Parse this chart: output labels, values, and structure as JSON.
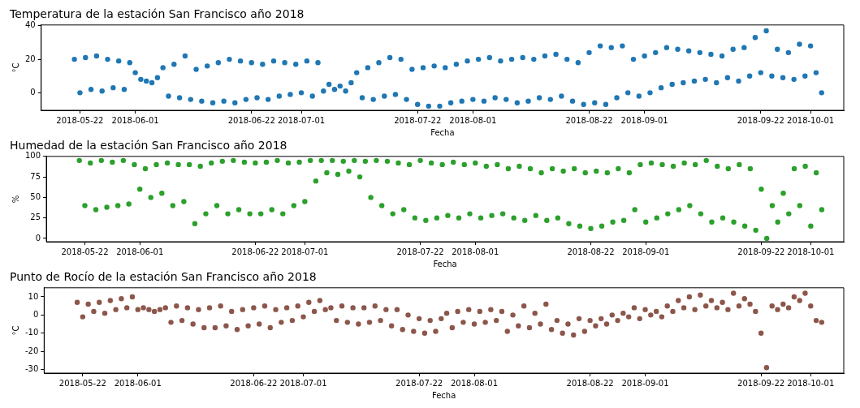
{
  "chart_data": [
    {
      "type": "scatter",
      "title": "Temperatura de la estación San Francisco año 2018",
      "xlabel": "Fecha",
      "ylabel": "°C",
      "color": "#1f77b4",
      "marker": "circle",
      "grid": false,
      "legend": false,
      "x": [
        "2018-05-21",
        "2018-05-22",
        "2018-05-23",
        "2018-05-24",
        "2018-05-25",
        "2018-05-26",
        "2018-05-27",
        "2018-05-28",
        "2018-05-29",
        "2018-05-30",
        "2018-05-31",
        "2018-06-01",
        "2018-06-02",
        "2018-06-03",
        "2018-06-04",
        "2018-06-05",
        "2018-06-06",
        "2018-06-07",
        "2018-06-08",
        "2018-06-09",
        "2018-06-10",
        "2018-06-11",
        "2018-06-12",
        "2018-06-13",
        "2018-06-14",
        "2018-06-15",
        "2018-06-16",
        "2018-06-17",
        "2018-06-18",
        "2018-06-19",
        "2018-06-20",
        "2018-06-21",
        "2018-06-22",
        "2018-06-23",
        "2018-06-24",
        "2018-06-25",
        "2018-06-26",
        "2018-06-27",
        "2018-06-28",
        "2018-06-29",
        "2018-06-30",
        "2018-07-01",
        "2018-07-02",
        "2018-07-03",
        "2018-07-04",
        "2018-07-05",
        "2018-07-06",
        "2018-07-07",
        "2018-07-08",
        "2018-07-09",
        "2018-07-10",
        "2018-07-11",
        "2018-07-12",
        "2018-07-13",
        "2018-07-14",
        "2018-07-15",
        "2018-07-16",
        "2018-07-17",
        "2018-07-18",
        "2018-07-19",
        "2018-07-20",
        "2018-07-21",
        "2018-07-22",
        "2018-07-23",
        "2018-07-24",
        "2018-07-25",
        "2018-07-26",
        "2018-07-27",
        "2018-07-28",
        "2018-07-29",
        "2018-07-30",
        "2018-07-31",
        "2018-08-01",
        "2018-08-02",
        "2018-08-03",
        "2018-08-04",
        "2018-08-05",
        "2018-08-06",
        "2018-08-07",
        "2018-08-08",
        "2018-08-09",
        "2018-08-10",
        "2018-08-11",
        "2018-08-12",
        "2018-08-13",
        "2018-08-14",
        "2018-08-15",
        "2018-08-16",
        "2018-08-17",
        "2018-08-18",
        "2018-08-19",
        "2018-08-20",
        "2018-08-21",
        "2018-08-22",
        "2018-08-23",
        "2018-08-24",
        "2018-08-25",
        "2018-08-26",
        "2018-08-27",
        "2018-08-28",
        "2018-08-29",
        "2018-08-30",
        "2018-08-31",
        "2018-09-01",
        "2018-09-02",
        "2018-09-03",
        "2018-09-04",
        "2018-09-05",
        "2018-09-06",
        "2018-09-07",
        "2018-09-08",
        "2018-09-09",
        "2018-09-10",
        "2018-09-11",
        "2018-09-12",
        "2018-09-13",
        "2018-09-14",
        "2018-09-15",
        "2018-09-16",
        "2018-09-17",
        "2018-09-18",
        "2018-09-19",
        "2018-09-20",
        "2018-09-21",
        "2018-09-22",
        "2018-09-23",
        "2018-09-24",
        "2018-09-25",
        "2018-09-26",
        "2018-09-27",
        "2018-09-28",
        "2018-09-29",
        "2018-09-30",
        "2018-10-01",
        "2018-10-02",
        "2018-10-03"
      ],
      "values": [
        20,
        0,
        21,
        2,
        22,
        1,
        20,
        3,
        19,
        2,
        18,
        12,
        8,
        7,
        6,
        9,
        15,
        -2,
        17,
        -3,
        22,
        -4,
        14,
        -5,
        16,
        -6,
        18,
        -5,
        20,
        -6,
        19,
        -4,
        18,
        -3,
        17,
        -4,
        19,
        -2,
        18,
        -1,
        17,
        0,
        19,
        -2,
        18,
        1,
        5,
        2,
        4,
        1,
        6,
        12,
        -3,
        15,
        -4,
        18,
        -2,
        21,
        -1,
        20,
        -4,
        14,
        -7,
        15,
        -8,
        16,
        -8,
        15,
        -6,
        17,
        -5,
        19,
        -4,
        20,
        -5,
        21,
        -3,
        19,
        -4,
        20,
        -6,
        21,
        -5,
        20,
        -3,
        22,
        -4,
        23,
        -2,
        20,
        -5,
        18,
        -7,
        24,
        -6,
        28,
        -7,
        27,
        -3,
        28,
        0,
        20,
        -2,
        22,
        0,
        24,
        3,
        27,
        5,
        26,
        6,
        25,
        7,
        24,
        8,
        23,
        6,
        22,
        9,
        26,
        7,
        27,
        10,
        33,
        12,
        37,
        10,
        26,
        9,
        24,
        8,
        29,
        10,
        28,
        12,
        0
      ],
      "xlim": [
        "2018-05-15",
        "2018-10-07"
      ],
      "xticks": [
        "2018-05-22",
        "2018-06-01",
        "2018-06-22",
        "2018-07-01",
        "2018-07-22",
        "2018-08-01",
        "2018-08-22",
        "2018-09-01",
        "2018-09-22",
        "2018-10-01"
      ],
      "ylim": [
        -10.5,
        40.5
      ],
      "yticks": [
        0,
        20,
        40
      ]
    },
    {
      "type": "scatter",
      "title": "Humedad de la estación San Francisco año 2018",
      "xlabel": "Fecha",
      "ylabel": "%",
      "color": "#2ca02c",
      "marker": "circle",
      "grid": false,
      "legend": false,
      "x": [
        "2018-05-21",
        "2018-05-22",
        "2018-05-23",
        "2018-05-24",
        "2018-05-25",
        "2018-05-26",
        "2018-05-27",
        "2018-05-28",
        "2018-05-29",
        "2018-05-30",
        "2018-05-31",
        "2018-06-01",
        "2018-06-02",
        "2018-06-03",
        "2018-06-04",
        "2018-06-05",
        "2018-06-06",
        "2018-06-07",
        "2018-06-08",
        "2018-06-09",
        "2018-06-10",
        "2018-06-11",
        "2018-06-12",
        "2018-06-13",
        "2018-06-14",
        "2018-06-15",
        "2018-06-16",
        "2018-06-17",
        "2018-06-18",
        "2018-06-19",
        "2018-06-20",
        "2018-06-21",
        "2018-06-22",
        "2018-06-23",
        "2018-06-24",
        "2018-06-25",
        "2018-06-26",
        "2018-06-27",
        "2018-06-28",
        "2018-06-29",
        "2018-06-30",
        "2018-07-01",
        "2018-07-02",
        "2018-07-03",
        "2018-07-04",
        "2018-07-05",
        "2018-07-06",
        "2018-07-07",
        "2018-07-08",
        "2018-07-09",
        "2018-07-10",
        "2018-07-11",
        "2018-07-12",
        "2018-07-13",
        "2018-07-14",
        "2018-07-15",
        "2018-07-16",
        "2018-07-17",
        "2018-07-18",
        "2018-07-19",
        "2018-07-20",
        "2018-07-21",
        "2018-07-22",
        "2018-07-23",
        "2018-07-24",
        "2018-07-25",
        "2018-07-26",
        "2018-07-27",
        "2018-07-28",
        "2018-07-29",
        "2018-07-30",
        "2018-07-31",
        "2018-08-01",
        "2018-08-02",
        "2018-08-03",
        "2018-08-04",
        "2018-08-05",
        "2018-08-06",
        "2018-08-07",
        "2018-08-08",
        "2018-08-09",
        "2018-08-10",
        "2018-08-11",
        "2018-08-12",
        "2018-08-13",
        "2018-08-14",
        "2018-08-15",
        "2018-08-16",
        "2018-08-17",
        "2018-08-18",
        "2018-08-19",
        "2018-08-20",
        "2018-08-21",
        "2018-08-22",
        "2018-08-23",
        "2018-08-24",
        "2018-08-25",
        "2018-08-26",
        "2018-08-27",
        "2018-08-28",
        "2018-08-29",
        "2018-08-30",
        "2018-08-31",
        "2018-09-01",
        "2018-09-02",
        "2018-09-03",
        "2018-09-04",
        "2018-09-05",
        "2018-09-06",
        "2018-09-07",
        "2018-09-08",
        "2018-09-09",
        "2018-09-10",
        "2018-09-11",
        "2018-09-12",
        "2018-09-13",
        "2018-09-14",
        "2018-09-15",
        "2018-09-16",
        "2018-09-17",
        "2018-09-18",
        "2018-09-19",
        "2018-09-20",
        "2018-09-21",
        "2018-09-22",
        "2018-09-23",
        "2018-09-24",
        "2018-09-25",
        "2018-09-26",
        "2018-09-27",
        "2018-09-28",
        "2018-09-29",
        "2018-09-30",
        "2018-10-01",
        "2018-10-02",
        "2018-10-03"
      ],
      "values": [
        95,
        40,
        92,
        35,
        95,
        38,
        93,
        40,
        95,
        42,
        90,
        60,
        85,
        50,
        90,
        55,
        92,
        40,
        90,
        45,
        90,
        18,
        88,
        30,
        92,
        40,
        94,
        30,
        95,
        35,
        93,
        30,
        92,
        30,
        93,
        35,
        95,
        30,
        92,
        40,
        93,
        45,
        95,
        70,
        95,
        80,
        95,
        78,
        94,
        82,
        95,
        75,
        94,
        50,
        95,
        40,
        94,
        30,
        92,
        35,
        90,
        25,
        95,
        22,
        92,
        25,
        90,
        28,
        93,
        25,
        90,
        30,
        92,
        25,
        88,
        28,
        90,
        30,
        85,
        25,
        88,
        22,
        85,
        28,
        80,
        22,
        85,
        25,
        82,
        18,
        85,
        15,
        80,
        12,
        82,
        15,
        80,
        20,
        85,
        22,
        80,
        35,
        90,
        20,
        92,
        25,
        90,
        30,
        88,
        35,
        92,
        40,
        90,
        30,
        95,
        20,
        88,
        25,
        85,
        20,
        90,
        15,
        85,
        10,
        60,
        0,
        40,
        20,
        55,
        30,
        85,
        40,
        88,
        15,
        80,
        35
      ],
      "xlim": [
        "2018-05-15",
        "2018-10-07"
      ],
      "xticks": [
        "2018-05-22",
        "2018-06-01",
        "2018-06-22",
        "2018-07-01",
        "2018-07-22",
        "2018-08-01",
        "2018-08-22",
        "2018-09-01",
        "2018-09-22",
        "2018-10-01"
      ],
      "ylim": [
        -4,
        100
      ],
      "yticks": [
        0,
        25,
        50,
        75,
        100
      ]
    },
    {
      "type": "scatter",
      "title": "Punto de Rocío de la estación San Francisco año 2018",
      "xlabel": "Fecha",
      "ylabel": "°C",
      "color": "#8c564b",
      "marker": "circle",
      "grid": false,
      "legend": false,
      "x": [
        "2018-05-21",
        "2018-05-22",
        "2018-05-23",
        "2018-05-24",
        "2018-05-25",
        "2018-05-26",
        "2018-05-27",
        "2018-05-28",
        "2018-05-29",
        "2018-05-30",
        "2018-05-31",
        "2018-06-01",
        "2018-06-02",
        "2018-06-03",
        "2018-06-04",
        "2018-06-05",
        "2018-06-06",
        "2018-06-07",
        "2018-06-08",
        "2018-06-09",
        "2018-06-10",
        "2018-06-11",
        "2018-06-12",
        "2018-06-13",
        "2018-06-14",
        "2018-06-15",
        "2018-06-16",
        "2018-06-17",
        "2018-06-18",
        "2018-06-19",
        "2018-06-20",
        "2018-06-21",
        "2018-06-22",
        "2018-06-23",
        "2018-06-24",
        "2018-06-25",
        "2018-06-26",
        "2018-06-27",
        "2018-06-28",
        "2018-06-29",
        "2018-06-30",
        "2018-07-01",
        "2018-07-02",
        "2018-07-03",
        "2018-07-04",
        "2018-07-05",
        "2018-07-06",
        "2018-07-07",
        "2018-07-08",
        "2018-07-09",
        "2018-07-10",
        "2018-07-11",
        "2018-07-12",
        "2018-07-13",
        "2018-07-14",
        "2018-07-15",
        "2018-07-16",
        "2018-07-17",
        "2018-07-18",
        "2018-07-19",
        "2018-07-20",
        "2018-07-21",
        "2018-07-22",
        "2018-07-23",
        "2018-07-24",
        "2018-07-25",
        "2018-07-26",
        "2018-07-27",
        "2018-07-28",
        "2018-07-29",
        "2018-07-30",
        "2018-07-31",
        "2018-08-01",
        "2018-08-02",
        "2018-08-03",
        "2018-08-04",
        "2018-08-05",
        "2018-08-06",
        "2018-08-07",
        "2018-08-08",
        "2018-08-09",
        "2018-08-10",
        "2018-08-11",
        "2018-08-12",
        "2018-08-13",
        "2018-08-14",
        "2018-08-15",
        "2018-08-16",
        "2018-08-17",
        "2018-08-18",
        "2018-08-19",
        "2018-08-20",
        "2018-08-21",
        "2018-08-22",
        "2018-08-23",
        "2018-08-24",
        "2018-08-25",
        "2018-08-26",
        "2018-08-27",
        "2018-08-28",
        "2018-08-29",
        "2018-08-30",
        "2018-08-31",
        "2018-09-01",
        "2018-09-02",
        "2018-09-03",
        "2018-09-04",
        "2018-09-05",
        "2018-09-06",
        "2018-09-07",
        "2018-09-08",
        "2018-09-09",
        "2018-09-10",
        "2018-09-11",
        "2018-09-12",
        "2018-09-13",
        "2018-09-14",
        "2018-09-15",
        "2018-09-16",
        "2018-09-17",
        "2018-09-18",
        "2018-09-19",
        "2018-09-20",
        "2018-09-21",
        "2018-09-22",
        "2018-09-23",
        "2018-09-24",
        "2018-09-25",
        "2018-09-26",
        "2018-09-27",
        "2018-09-28",
        "2018-09-29",
        "2018-09-30",
        "2018-10-01",
        "2018-10-02",
        "2018-10-03"
      ],
      "values": [
        7,
        -1,
        6,
        2,
        7,
        1,
        8,
        3,
        9,
        4,
        10,
        3,
        4,
        3,
        2,
        3,
        4,
        -4,
        5,
        -3,
        4,
        -5,
        3,
        -7,
        4,
        -7,
        5,
        -6,
        2,
        -8,
        3,
        -6,
        4,
        -5,
        5,
        -7,
        3,
        -4,
        4,
        -3,
        5,
        -1,
        7,
        2,
        8,
        3,
        4,
        -3,
        5,
        -4,
        4,
        -5,
        4,
        -4,
        5,
        -3,
        3,
        -6,
        3,
        -8,
        0,
        -9,
        -2,
        -10,
        -3,
        -9,
        -2,
        1,
        -7,
        2,
        -4,
        3,
        -5,
        2,
        -4,
        3,
        -3,
        2,
        -9,
        0,
        -6,
        5,
        -7,
        1,
        -5,
        6,
        -8,
        -3,
        -10,
        -5,
        -11,
        -2,
        -9,
        -3,
        -6,
        -2,
        -5,
        0,
        -3,
        1,
        -1,
        4,
        -2,
        3,
        0,
        2,
        -1,
        5,
        2,
        8,
        4,
        10,
        3,
        11,
        5,
        8,
        4,
        7,
        3,
        12,
        5,
        9,
        6,
        2,
        -10,
        -29,
        5,
        3,
        6,
        4,
        10,
        8,
        12,
        5,
        -3,
        -4
      ],
      "xlim": [
        "2018-05-15",
        "2018-10-07"
      ],
      "xticks": [
        "2018-05-22",
        "2018-06-01",
        "2018-06-22",
        "2018-07-01",
        "2018-07-22",
        "2018-08-01",
        "2018-08-22",
        "2018-09-01",
        "2018-09-22",
        "2018-10-01"
      ],
      "ylim": [
        -32,
        15
      ],
      "yticks": [
        -30,
        -20,
        -10,
        0,
        10
      ]
    }
  ]
}
